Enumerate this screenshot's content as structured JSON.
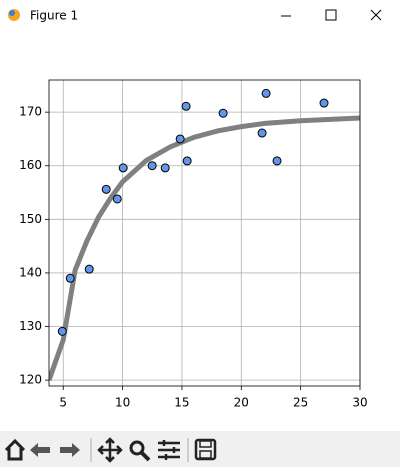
{
  "window": {
    "title": "Figure 1"
  },
  "chart_data": {
    "type": "scatter",
    "xlim": [
      3.8,
      30
    ],
    "ylim": [
      118.9,
      176
    ],
    "xticks": [
      5,
      10,
      15,
      20,
      25,
      30
    ],
    "yticks": [
      120,
      130,
      140,
      150,
      160,
      170
    ],
    "grid": true,
    "points": {
      "color": "#6495ed",
      "x": [
        4.92,
        5.59,
        7.19,
        8.62,
        9.55,
        10.05,
        12.49,
        13.59,
        14.85,
        15.35,
        15.44,
        18.47,
        21.75,
        22.09,
        23.01,
        26.97
      ],
      "y": [
        129.1,
        139.0,
        140.7,
        155.6,
        153.8,
        159.6,
        160.0,
        159.6,
        165.0,
        171.1,
        160.9,
        169.8,
        166.1,
        173.5,
        160.9,
        171.7
      ]
    },
    "curve": {
      "color": "#808080",
      "x": [
        3.8,
        5,
        6,
        7,
        8,
        9,
        10,
        12,
        14,
        16,
        18,
        20,
        22,
        25,
        30
      ],
      "y": [
        120,
        127.5,
        140.5,
        146,
        150.5,
        154,
        157,
        161,
        163.5,
        165.3,
        166.5,
        167.3,
        167.9,
        168.4,
        168.9
      ]
    }
  }
}
